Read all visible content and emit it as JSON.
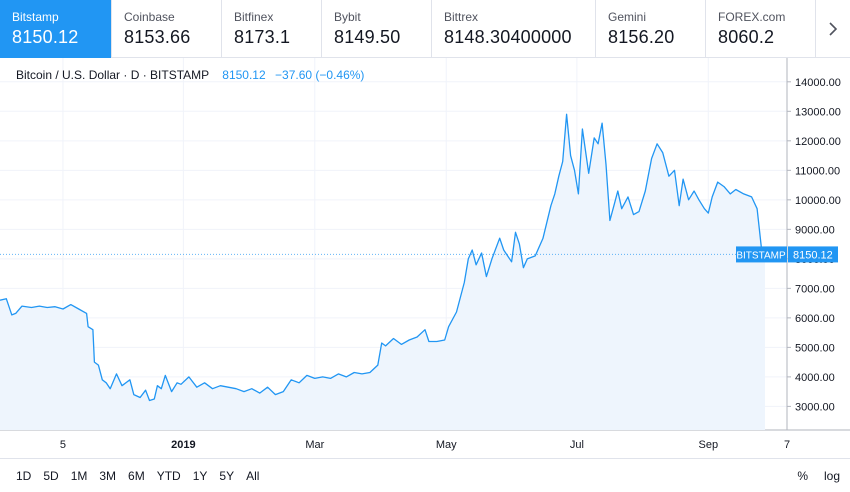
{
  "exchanges": [
    {
      "name": "Bitstamp",
      "price": "8150.12",
      "active": true
    },
    {
      "name": "Coinbase",
      "price": "8153.66",
      "active": false
    },
    {
      "name": "Bitfinex",
      "price": "8173.1",
      "active": false
    },
    {
      "name": "Bybit",
      "price": "8149.50",
      "active": false
    },
    {
      "name": "Bittrex",
      "price": "8148.30400000",
      "active": false
    },
    {
      "name": "Gemini",
      "price": "8156.20",
      "active": false
    },
    {
      "name": "FOREX.com",
      "price": "8060.2",
      "active": false
    }
  ],
  "next_icon": "chevron-right-icon",
  "legend": {
    "symbol": "Bitcoin / U.S. Dollar · D · BITSTAMP",
    "last": "8150.12",
    "change": "−37.60 (−0.46%)"
  },
  "price_tag": {
    "exchange": "BITSTAMP",
    "value": "8150.12"
  },
  "toolbar": {
    "ranges": [
      "1D",
      "5D",
      "1M",
      "3M",
      "6M",
      "YTD",
      "1Y",
      "5Y",
      "All"
    ],
    "percent": "%",
    "log": "log"
  },
  "colors": {
    "accent": "#2196f3",
    "line": "#2196f3",
    "fill": "#eef5fd",
    "grid": "#f0f3fa"
  },
  "chart_data": {
    "type": "area",
    "y_ticks": [
      "14000.00",
      "13000.00",
      "12000.00",
      "11000.00",
      "10000.00",
      "9000.00",
      "8000.00",
      "7000.00",
      "6000.00",
      "5000.00",
      "4000.00",
      "3000.00"
    ],
    "ylim": [
      2200,
      14400
    ],
    "x_ticks": [
      "5",
      "2019",
      "Mar",
      "May",
      "Jul",
      "Sep",
      "7"
    ],
    "x_tick_pos": [
      0.08,
      0.233,
      0.4,
      0.567,
      0.733,
      0.9,
      1.0
    ],
    "current_price": 8150.12,
    "points": [
      [
        0,
        6600
      ],
      [
        0.008,
        6650
      ],
      [
        0.015,
        6100
      ],
      [
        0.02,
        6150
      ],
      [
        0.028,
        6400
      ],
      [
        0.04,
        6350
      ],
      [
        0.05,
        6400
      ],
      [
        0.06,
        6350
      ],
      [
        0.07,
        6380
      ],
      [
        0.08,
        6300
      ],
      [
        0.09,
        6450
      ],
      [
        0.1,
        6300
      ],
      [
        0.11,
        6150
      ],
      [
        0.112,
        5700
      ],
      [
        0.118,
        5600
      ],
      [
        0.12,
        4500
      ],
      [
        0.125,
        4400
      ],
      [
        0.13,
        3900
      ],
      [
        0.135,
        3800
      ],
      [
        0.14,
        3600
      ],
      [
        0.148,
        4100
      ],
      [
        0.155,
        3700
      ],
      [
        0.165,
        3900
      ],
      [
        0.17,
        3400
      ],
      [
        0.178,
        3300
      ],
      [
        0.185,
        3550
      ],
      [
        0.19,
        3200
      ],
      [
        0.196,
        3250
      ],
      [
        0.2,
        3700
      ],
      [
        0.205,
        3600
      ],
      [
        0.21,
        4050
      ],
      [
        0.218,
        3500
      ],
      [
        0.225,
        3800
      ],
      [
        0.23,
        3750
      ],
      [
        0.24,
        4000
      ],
      [
        0.25,
        3650
      ],
      [
        0.26,
        3800
      ],
      [
        0.27,
        3600
      ],
      [
        0.28,
        3700
      ],
      [
        0.3,
        3600
      ],
      [
        0.31,
        3500
      ],
      [
        0.32,
        3600
      ],
      [
        0.33,
        3450
      ],
      [
        0.34,
        3650
      ],
      [
        0.35,
        3400
      ],
      [
        0.36,
        3500
      ],
      [
        0.37,
        3900
      ],
      [
        0.38,
        3800
      ],
      [
        0.39,
        4050
      ],
      [
        0.4,
        3950
      ],
      [
        0.41,
        4000
      ],
      [
        0.42,
        3950
      ],
      [
        0.43,
        4100
      ],
      [
        0.44,
        4000
      ],
      [
        0.45,
        4150
      ],
      [
        0.46,
        4100
      ],
      [
        0.47,
        4150
      ],
      [
        0.48,
        4400
      ],
      [
        0.485,
        5150
      ],
      [
        0.49,
        5050
      ],
      [
        0.5,
        5300
      ],
      [
        0.51,
        5100
      ],
      [
        0.52,
        5250
      ],
      [
        0.53,
        5350
      ],
      [
        0.54,
        5600
      ],
      [
        0.545,
        5200
      ],
      [
        0.555,
        5200
      ],
      [
        0.565,
        5250
      ],
      [
        0.57,
        5700
      ],
      [
        0.58,
        6200
      ],
      [
        0.59,
        7200
      ],
      [
        0.595,
        8000
      ],
      [
        0.6,
        8300
      ],
      [
        0.605,
        7800
      ],
      [
        0.612,
        8200
      ],
      [
        0.618,
        7400
      ],
      [
        0.625,
        8000
      ],
      [
        0.635,
        8700
      ],
      [
        0.64,
        8300
      ],
      [
        0.65,
        7900
      ],
      [
        0.655,
        8900
      ],
      [
        0.66,
        8500
      ],
      [
        0.665,
        7700
      ],
      [
        0.67,
        8000
      ],
      [
        0.68,
        8100
      ],
      [
        0.69,
        8700
      ],
      [
        0.7,
        9800
      ],
      [
        0.705,
        10200
      ],
      [
        0.71,
        10800
      ],
      [
        0.715,
        11300
      ],
      [
        0.72,
        12900
      ],
      [
        0.725,
        11500
      ],
      [
        0.73,
        11000
      ],
      [
        0.735,
        10200
      ],
      [
        0.74,
        12400
      ],
      [
        0.748,
        10900
      ],
      [
        0.755,
        12100
      ],
      [
        0.76,
        11900
      ],
      [
        0.765,
        12600
      ],
      [
        0.77,
        11200
      ],
      [
        0.775,
        9300
      ],
      [
        0.78,
        9800
      ],
      [
        0.785,
        10300
      ],
      [
        0.79,
        9700
      ],
      [
        0.798,
        10100
      ],
      [
        0.805,
        9500
      ],
      [
        0.812,
        9600
      ],
      [
        0.82,
        10300
      ],
      [
        0.828,
        11400
      ],
      [
        0.835,
        11900
      ],
      [
        0.842,
        11600
      ],
      [
        0.85,
        10800
      ],
      [
        0.857,
        11000
      ],
      [
        0.863,
        9800
      ],
      [
        0.868,
        10700
      ],
      [
        0.875,
        10000
      ],
      [
        0.882,
        10300
      ],
      [
        0.888,
        10000
      ],
      [
        0.895,
        9700
      ],
      [
        0.9,
        9550
      ],
      [
        0.905,
        10100
      ],
      [
        0.912,
        10600
      ],
      [
        0.92,
        10450
      ],
      [
        0.928,
        10200
      ],
      [
        0.935,
        10350
      ],
      [
        0.945,
        10200
      ],
      [
        0.955,
        10100
      ],
      [
        0.962,
        9700
      ],
      [
        0.968,
        8250
      ],
      [
        0.972,
        8150
      ]
    ]
  }
}
